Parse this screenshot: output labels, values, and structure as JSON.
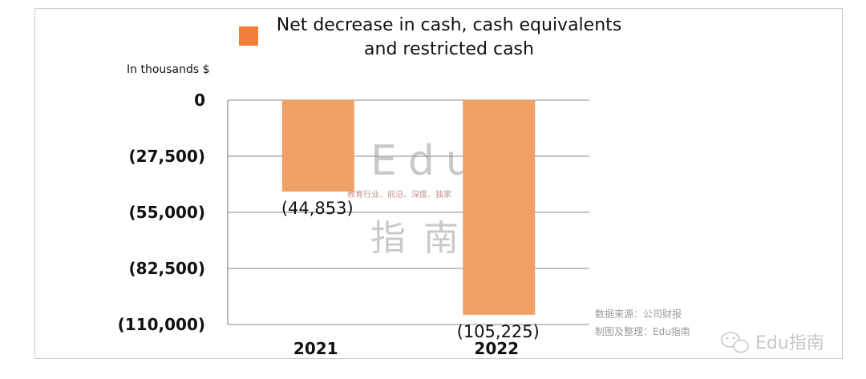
{
  "chart_data": {
    "type": "bar",
    "title": "Net decrease in cash, cash equivalents and restricted cash",
    "title_lines": [
      "Net decrease in cash, cash equivalents",
      "and restricted cash"
    ],
    "unit_label": "In thousands $",
    "categories": [
      "2021",
      "2022"
    ],
    "series": [
      {
        "name": "Net decrease in cash, cash equivalents and restricted cash",
        "values": [
          -44853,
          -105225
        ]
      }
    ],
    "data_labels": [
      "(44,853)",
      "(105,225)"
    ],
    "y_ticks": [
      0,
      -27500,
      -55000,
      -82500,
      -110000
    ],
    "y_tick_labels": [
      "0",
      "(27,500)",
      "(55,000)",
      "(82,500)",
      "(110,000)"
    ],
    "ylim": [
      -110000,
      0
    ],
    "grid": true,
    "legend_position": "top",
    "bar_color": "#f0a067",
    "legend_color": "#f07f3c"
  },
  "watermark": {
    "brand_latin": "Edu",
    "brand_cn": "指南",
    "tagline": "教育行业、前沿、深度、独家"
  },
  "source_lines": [
    "数据来源：公司财报",
    "制图及整理：Edu指南"
  ],
  "footer_brand": "Edu指南"
}
